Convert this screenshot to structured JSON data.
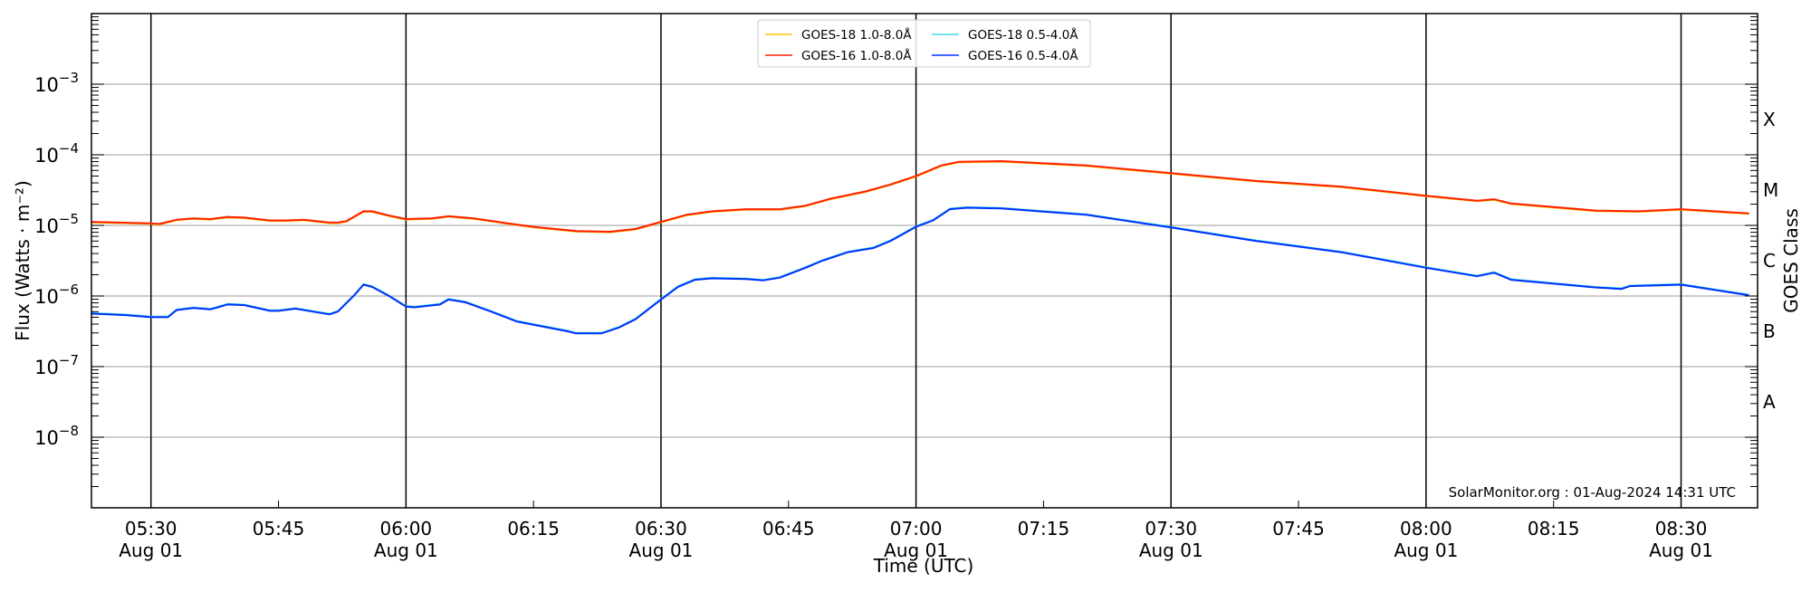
{
  "chart_data": {
    "type": "line",
    "title": "",
    "xlabel": "Time (UTC)",
    "ylabel": "Flux (Watts · m⁻²)",
    "y2label": "GOES Class",
    "yscale": "log",
    "ylim": [
      1e-09,
      0.01
    ],
    "xlim": [
      "05:23",
      "08:39"
    ],
    "grid": "horizontal at decades",
    "legend_placement": "top-center",
    "y_tick_labels": [
      {
        "exp": -3,
        "base": "10",
        "sup": "−3"
      },
      {
        "exp": -4,
        "base": "10",
        "sup": "−4"
      },
      {
        "exp": -5,
        "base": "10",
        "sup": "−5"
      },
      {
        "exp": -6,
        "base": "10",
        "sup": "−6"
      },
      {
        "exp": -7,
        "base": "10",
        "sup": "−7"
      },
      {
        "exp": -8,
        "base": "10",
        "sup": "−8"
      }
    ],
    "x_ticks": [
      {
        "time": "05:30",
        "label": "05:30",
        "date": "Aug 01"
      },
      {
        "time": "05:45",
        "label": "05:45",
        "date": ""
      },
      {
        "time": "06:00",
        "label": "06:00",
        "date": "Aug 01"
      },
      {
        "time": "06:15",
        "label": "06:15",
        "date": ""
      },
      {
        "time": "06:30",
        "label": "06:30",
        "date": "Aug 01"
      },
      {
        "time": "06:45",
        "label": "06:45",
        "date": ""
      },
      {
        "time": "07:00",
        "label": "07:00",
        "date": "Aug 01"
      },
      {
        "time": "07:15",
        "label": "07:15",
        "date": ""
      },
      {
        "time": "07:30",
        "label": "07:30",
        "date": "Aug 01"
      },
      {
        "time": "07:45",
        "label": "07:45",
        "date": ""
      },
      {
        "time": "08:00",
        "label": "08:00",
        "date": "Aug 01"
      },
      {
        "time": "08:15",
        "label": "08:15",
        "date": ""
      },
      {
        "time": "08:30",
        "label": "08:30",
        "date": "Aug 01"
      }
    ],
    "goes_classes": [
      {
        "label": "X",
        "log_center": -3.5
      },
      {
        "label": "M",
        "log_center": -4.5
      },
      {
        "label": "C",
        "log_center": -5.5
      },
      {
        "label": "B",
        "log_center": -6.5
      },
      {
        "label": "A",
        "log_center": -7.5
      }
    ],
    "series": [
      {
        "name": "GOES-18 1.0-8.0Å",
        "color": "#ffc000",
        "offset_log": -0.01,
        "ref": "GOES-16 1.0-8.0Å"
      },
      {
        "name": "GOES-16 1.0-8.0Å",
        "color": "#ff2000",
        "times": [
          "05:23",
          "05:30",
          "05:31",
          "05:33",
          "05:35",
          "05:37",
          "05:39",
          "05:41",
          "05:44",
          "05:46",
          "05:48",
          "05:51",
          "05:52",
          "05:53",
          "05:55",
          "05:56",
          "05:58",
          "06:00",
          "06:03",
          "06:05",
          "06:08",
          "06:12",
          "06:15",
          "06:20",
          "06:24",
          "06:27",
          "06:30",
          "06:33",
          "06:36",
          "06:40",
          "06:44",
          "06:47",
          "06:50",
          "06:54",
          "06:57",
          "07:00",
          "07:03",
          "07:05",
          "07:10",
          "07:20",
          "07:30",
          "07:40",
          "07:50",
          "08:00",
          "08:06",
          "08:08",
          "08:10",
          "08:20",
          "08:25",
          "08:30",
          "08:38"
        ],
        "log_flux": [
          -4.95,
          -4.97,
          -4.98,
          -4.92,
          -4.9,
          -4.91,
          -4.88,
          -4.89,
          -4.93,
          -4.93,
          -4.92,
          -4.96,
          -4.96,
          -4.94,
          -4.8,
          -4.8,
          -4.86,
          -4.91,
          -4.9,
          -4.87,
          -4.9,
          -4.97,
          -5.02,
          -5.08,
          -5.09,
          -5.05,
          -4.95,
          -4.85,
          -4.8,
          -4.77,
          -4.77,
          -4.72,
          -4.62,
          -4.52,
          -4.42,
          -4.3,
          -4.15,
          -4.1,
          -4.09,
          -4.15,
          -4.26,
          -4.37,
          -4.45,
          -4.58,
          -4.65,
          -4.63,
          -4.69,
          -4.79,
          -4.8,
          -4.77,
          -4.83
        ]
      },
      {
        "name": "GOES-18 0.5-4.0Å",
        "color": "#40e0e0",
        "offset_log": 0.01,
        "ref": "GOES-16 0.5-4.0Å"
      },
      {
        "name": "GOES-16 0.5-4.0Å",
        "color": "#0030ff",
        "times": [
          "05:23",
          "05:27",
          "05:30",
          "05:32",
          "05:33",
          "05:35",
          "05:37",
          "05:39",
          "05:41",
          "05:44",
          "05:45",
          "05:47",
          "05:51",
          "05:52",
          "05:54",
          "05:55",
          "05:56",
          "05:58",
          "06:00",
          "06:01",
          "06:04",
          "06:05",
          "06:07",
          "06:10",
          "06:13",
          "06:19",
          "06:20",
          "06:23",
          "06:25",
          "06:27",
          "06:30",
          "06:32",
          "06:34",
          "06:36",
          "06:40",
          "06:42",
          "06:44",
          "06:47",
          "06:49",
          "06:52",
          "06:55",
          "06:57",
          "07:00",
          "07:02",
          "07:04",
          "07:06",
          "07:10",
          "07:20",
          "07:30",
          "07:40",
          "07:50",
          "08:00",
          "08:06",
          "08:08",
          "08:10",
          "08:20",
          "08:23",
          "08:24",
          "08:30",
          "08:38"
        ],
        "log_flux": [
          -6.25,
          -6.27,
          -6.3,
          -6.3,
          -6.2,
          -6.17,
          -6.19,
          -6.12,
          -6.13,
          -6.21,
          -6.21,
          -6.18,
          -6.26,
          -6.22,
          -5.98,
          -5.84,
          -5.87,
          -6.0,
          -6.15,
          -6.16,
          -6.12,
          -6.05,
          -6.09,
          -6.22,
          -6.36,
          -6.5,
          -6.53,
          -6.53,
          -6.45,
          -6.33,
          -6.05,
          -5.87,
          -5.77,
          -5.75,
          -5.76,
          -5.78,
          -5.74,
          -5.6,
          -5.5,
          -5.38,
          -5.32,
          -5.22,
          -5.02,
          -4.93,
          -4.77,
          -4.75,
          -4.76,
          -4.85,
          -5.03,
          -5.22,
          -5.38,
          -5.6,
          -5.72,
          -5.67,
          -5.77,
          -5.88,
          -5.9,
          -5.86,
          -5.84,
          -5.99
        ]
      }
    ],
    "annotation": "SolarMonitor.org : 01-Aug-2024 14:31 UTC"
  }
}
